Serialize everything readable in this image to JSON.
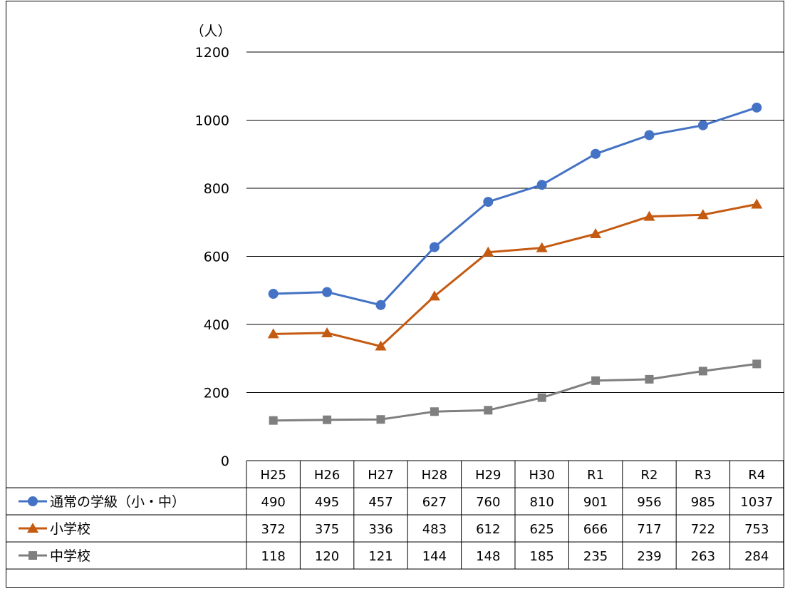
{
  "chart_data": {
    "type": "line",
    "title": "",
    "unit_label": "（人）",
    "ylim": [
      0,
      1200
    ],
    "yticks": [
      0,
      200,
      400,
      600,
      800,
      1000,
      1200
    ],
    "categories": [
      "H25",
      "H26",
      "H27",
      "H28",
      "H29",
      "H30",
      "R1",
      "R2",
      "R3",
      "R4"
    ],
    "grid": true,
    "legend": "data-table",
    "series": [
      {
        "name": "通常の学級（小・中）",
        "marker": "circle",
        "color": "#4472c4",
        "values": [
          490,
          495,
          457,
          627,
          760,
          810,
          901,
          956,
          985,
          1037
        ]
      },
      {
        "name": "小学校",
        "marker": "triangle",
        "color": "#c55a11",
        "values": [
          372,
          375,
          336,
          483,
          612,
          625,
          666,
          717,
          722,
          753
        ]
      },
      {
        "name": "中学校",
        "marker": "square",
        "color": "#7f7f7f",
        "values": [
          118,
          120,
          121,
          144,
          148,
          185,
          235,
          239,
          263,
          284
        ]
      }
    ]
  }
}
